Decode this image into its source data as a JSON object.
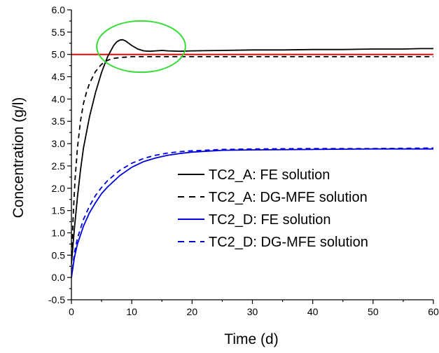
{
  "chart_data": {
    "type": "line",
    "title": "",
    "xlabel": "Time (d)",
    "ylabel": "Concentration (g/l)",
    "xlim": [
      0,
      60
    ],
    "ylim": [
      -0.5,
      6.0
    ],
    "x_ticks": [
      "0",
      "10",
      "20",
      "30",
      "40",
      "50",
      "60"
    ],
    "y_ticks": [
      "-0.5",
      "0.0",
      "0.5",
      "1.0",
      "1.5",
      "2.0",
      "2.5",
      "3.0",
      "3.5",
      "4.0",
      "4.5",
      "5.0",
      "5.5",
      "6.0"
    ],
    "grid": false,
    "legend_position": "center-right",
    "reference_line": {
      "y": 5.0,
      "color": "#ff0000"
    },
    "highlight_ellipse": {
      "x_range": [
        4.2,
        18.9
      ],
      "y_range": [
        4.6,
        5.75
      ],
      "color": "#33dd33"
    },
    "series": [
      {
        "name": "TC2_A:  FE solution",
        "color": "#000000",
        "dash": "solid",
        "x": [
          0,
          0.5,
          1,
          1.5,
          2,
          3,
          4,
          5,
          6,
          7,
          7.5,
          8,
          8.5,
          9,
          10,
          11,
          12,
          13,
          14,
          15,
          16,
          18,
          20,
          25,
          30,
          35,
          40,
          45,
          50,
          55,
          58,
          60
        ],
        "y": [
          0.3,
          1.1,
          1.8,
          2.4,
          2.9,
          3.6,
          4.15,
          4.6,
          4.95,
          5.2,
          5.28,
          5.32,
          5.33,
          5.3,
          5.2,
          5.12,
          5.08,
          5.07,
          5.08,
          5.09,
          5.08,
          5.07,
          5.08,
          5.09,
          5.1,
          5.1,
          5.11,
          5.11,
          5.12,
          5.12,
          5.13,
          5.13
        ]
      },
      {
        "name": "TC2_A:  DG-MFE solution",
        "color": "#000000",
        "dash": "dashed",
        "x": [
          0,
          0.3,
          0.6,
          1,
          1.5,
          2,
          2.5,
          3,
          4,
          5,
          6,
          7,
          8,
          10,
          12,
          15,
          20,
          30,
          40,
          50,
          60
        ],
        "y": [
          0.3,
          1.4,
          2.2,
          2.9,
          3.5,
          3.9,
          4.15,
          4.35,
          4.62,
          4.78,
          4.87,
          4.91,
          4.93,
          4.95,
          4.95,
          4.95,
          4.95,
          4.95,
          4.95,
          4.95,
          4.95
        ]
      },
      {
        "name": "TC2_D:  FE solution",
        "color": "#0000dd",
        "dash": "solid",
        "x": [
          0,
          0.5,
          1,
          2,
          3,
          4,
          5,
          6,
          8,
          10,
          12,
          14,
          16,
          18,
          20,
          25,
          30,
          40,
          50,
          60
        ],
        "y": [
          0.0,
          0.45,
          0.75,
          1.15,
          1.45,
          1.68,
          1.88,
          2.03,
          2.28,
          2.47,
          2.6,
          2.68,
          2.74,
          2.78,
          2.81,
          2.85,
          2.86,
          2.87,
          2.88,
          2.88
        ]
      },
      {
        "name": "TC2_D:  DG-MFE  solution",
        "color": "#0000dd",
        "dash": "dashed",
        "x": [
          0,
          0.5,
          1,
          2,
          3,
          4,
          5,
          6,
          8,
          10,
          12,
          14,
          16,
          18,
          20,
          25,
          30,
          40,
          50,
          60
        ],
        "y": [
          0.0,
          0.55,
          0.88,
          1.3,
          1.6,
          1.84,
          2.02,
          2.17,
          2.4,
          2.56,
          2.67,
          2.74,
          2.79,
          2.82,
          2.84,
          2.87,
          2.88,
          2.89,
          2.89,
          2.9
        ]
      }
    ]
  }
}
